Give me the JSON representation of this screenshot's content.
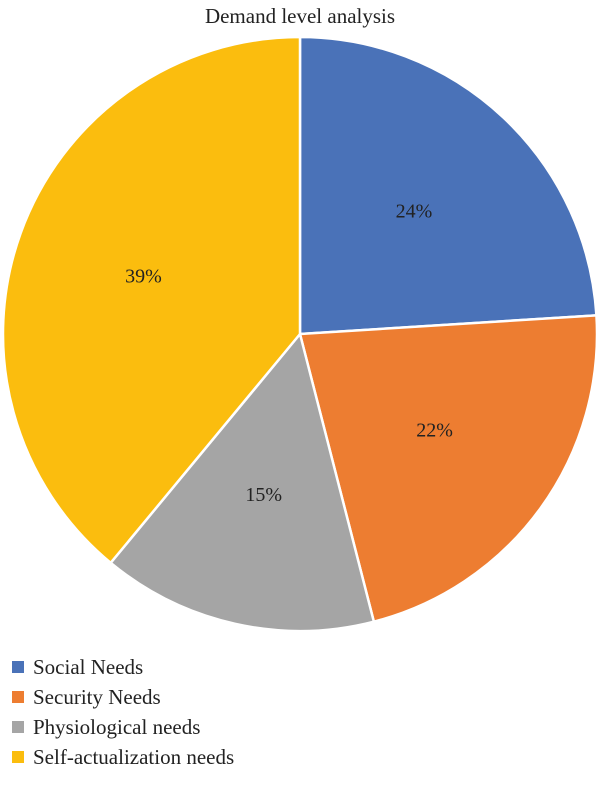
{
  "chart_data": {
    "type": "pie",
    "title": "Demand level analysis",
    "slices": [
      {
        "name": "Social Needs",
        "value": 24,
        "label": "24%",
        "color": "#4a72b8"
      },
      {
        "name": "Security Needs",
        "value": 22,
        "label": "22%",
        "color": "#ed7d31"
      },
      {
        "name": "Physiological needs",
        "value": 15,
        "label": "15%",
        "color": "#a5a5a5"
      },
      {
        "name": "Self-actualization needs",
        "value": 39,
        "label": "39%",
        "color": "#fbbd0e"
      }
    ],
    "start": "12 o'clock",
    "direction": "clockwise",
    "legend_position": "bottom-left"
  }
}
